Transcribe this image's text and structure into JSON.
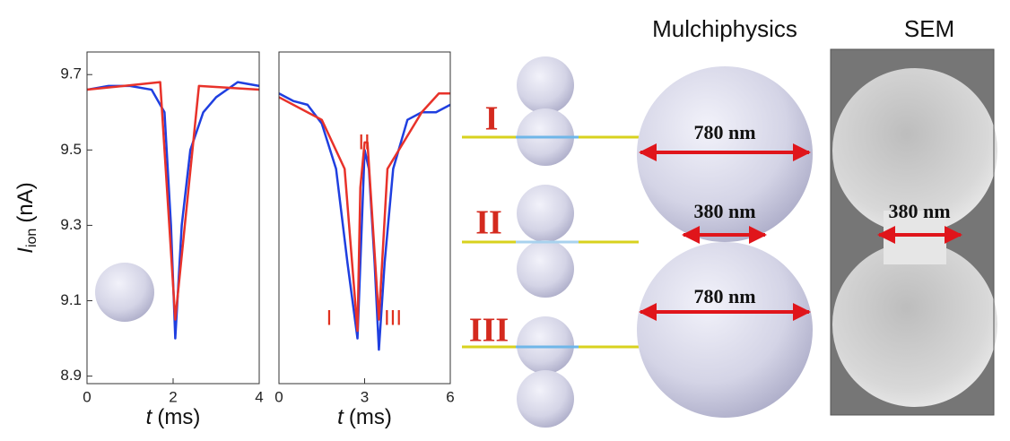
{
  "chart_data": [
    {
      "type": "line",
      "xlabel": {
        "symbol": "t",
        "unit": "(ms)"
      },
      "ylabel": {
        "symbol": "I",
        "subscript": "ion",
        "unit": "(nA)"
      },
      "xlim": [
        0,
        4
      ],
      "xticks": [
        0,
        2,
        4
      ],
      "ylim": [
        8.88,
        9.76
      ],
      "yticks": [
        8.9,
        9.1,
        9.3,
        9.5,
        9.7
      ],
      "series": [
        {
          "color": "#1f3fe0",
          "x": [
            0,
            0.5,
            1,
            1.5,
            1.8,
            1.95,
            2.05,
            2.2,
            2.4,
            2.7,
            3,
            3.5,
            4
          ],
          "values": [
            9.66,
            9.67,
            9.67,
            9.66,
            9.6,
            9.3,
            9.0,
            9.3,
            9.5,
            9.6,
            9.64,
            9.68,
            9.67
          ]
        },
        {
          "color": "#e8322a",
          "x": [
            0,
            1.7,
            2.05,
            2.6,
            4
          ],
          "values": [
            9.66,
            9.68,
            9.05,
            9.67,
            9.66
          ]
        }
      ]
    },
    {
      "type": "line",
      "xlabel": {
        "symbol": "t",
        "unit": "(ms)"
      },
      "xlim": [
        0,
        6
      ],
      "xticks": [
        0,
        3,
        6
      ],
      "ylim": [
        8.88,
        9.76
      ],
      "annotations": [
        "II",
        "I",
        "III"
      ],
      "series": [
        {
          "color": "#1f3fe0",
          "x": [
            0,
            0.5,
            1,
            1.5,
            2,
            2.4,
            2.75,
            2.9,
            3,
            3.15,
            3.35,
            3.5,
            3.7,
            4,
            4.5,
            5,
            5.5,
            6
          ],
          "values": [
            9.65,
            9.63,
            9.62,
            9.57,
            9.45,
            9.2,
            9.0,
            9.3,
            9.5,
            9.45,
            9.2,
            8.97,
            9.2,
            9.45,
            9.58,
            9.6,
            9.6,
            9.62
          ]
        },
        {
          "color": "#e8322a",
          "x": [
            0,
            1.5,
            2.3,
            2.75,
            2.85,
            3,
            3.1,
            3.5,
            3.8,
            5,
            5.6,
            6
          ],
          "values": [
            9.64,
            9.58,
            9.45,
            9.02,
            9.4,
            9.52,
            9.52,
            9.05,
            9.45,
            9.6,
            9.65,
            9.65
          ]
        }
      ]
    }
  ],
  "diagram": {
    "stage_labels": [
      "I",
      "II",
      "III"
    ],
    "simulation_title": "Mulchiphysics",
    "sem_title": "SEM",
    "simulation_dimensions": [
      "780 nm",
      "380 nm",
      "780 nm"
    ],
    "sem_dimension": "380 nm"
  }
}
